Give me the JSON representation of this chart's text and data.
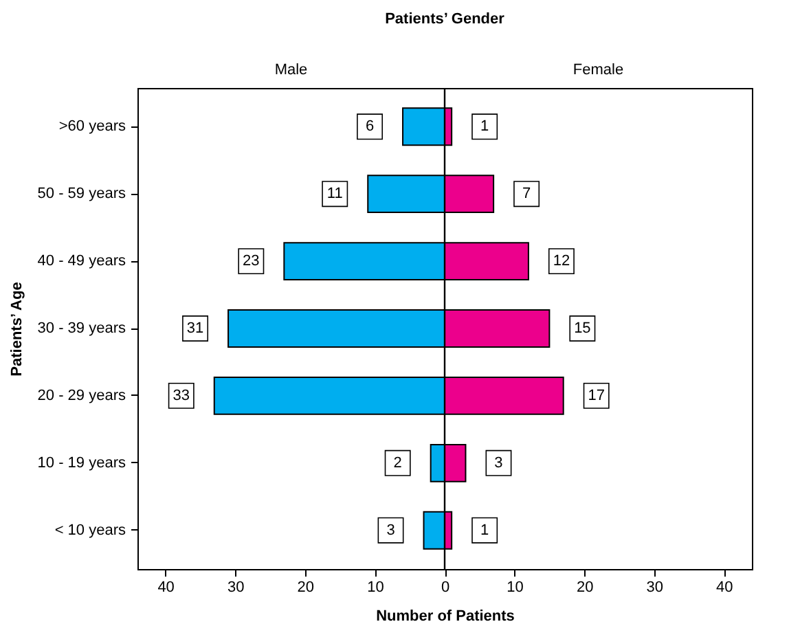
{
  "chart_data": {
    "type": "bar",
    "orientation": "horizontal",
    "title": "Patients’ Gender",
    "xlabel": "Number of Patients",
    "ylabel": "Patients’ Age",
    "annotations": [
      "Male",
      "Female"
    ],
    "categories": [
      ">60 years",
      "50 - 59 years",
      "40 - 49 years",
      "30 - 39 years",
      "20 - 29 years",
      "10 - 19 years",
      "< 10 years"
    ],
    "series": [
      {
        "color": "#00aeef",
        "values": [
          6,
          11,
          23,
          31,
          33,
          2,
          3
        ],
        "base": [
          -6,
          -11,
          -23,
          -31,
          -33,
          -2,
          -3
        ],
        "value_labels": [
          "6",
          "11",
          "23",
          "31",
          "33",
          "2",
          "3"
        ]
      },
      {
        "color": "#ec008c",
        "values": [
          1,
          7,
          12,
          15,
          17,
          3,
          1
        ],
        "value_labels": [
          "1",
          "7",
          "12",
          "15",
          "17",
          "3",
          "1"
        ]
      }
    ],
    "xlim": [
      -44,
      44
    ],
    "xticks": [
      {
        "value": -40,
        "label": "40"
      },
      {
        "value": -30,
        "label": "30"
      },
      {
        "value": -20,
        "label": "20"
      },
      {
        "value": -10,
        "label": "10"
      },
      0,
      10,
      20,
      30,
      40
    ],
    "ref_lines": [
      {
        "axis": "x",
        "value": 0,
        "color": "#000000"
      }
    ],
    "grid": false,
    "legend": false
  }
}
